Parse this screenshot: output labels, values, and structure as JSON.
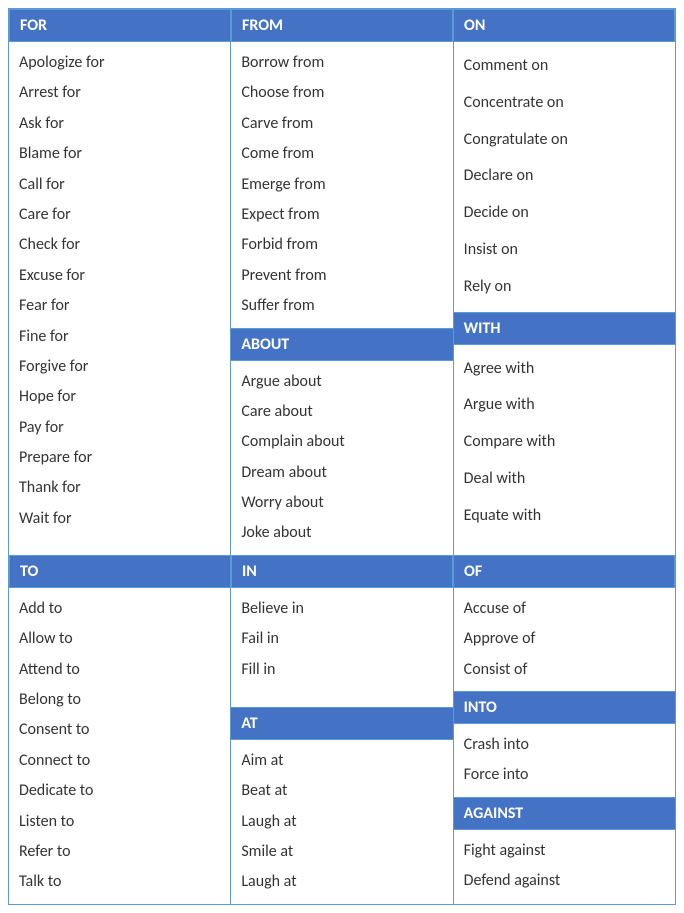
{
  "colors": {
    "header_bg": "#4472c4",
    "header_text": "#ffffff",
    "border": "#5b9bd5",
    "body_text": "#333333",
    "bg": "#ffffff"
  },
  "typography": {
    "font_family": "Calibri, Arial, sans-serif",
    "header_fontsize": 16,
    "body_fontsize": 16,
    "line_height_normal": 1.9,
    "line_height_spaced": 2.3
  },
  "sections": {
    "for": {
      "title": "FOR",
      "items": [
        "Apologize for",
        "Arrest for",
        "Ask for",
        "Blame for",
        "Call for",
        "Care for",
        "Check for",
        "Excuse for",
        "Fear for",
        "Fine for",
        "Forgive for",
        "Hope for",
        "Pay for",
        "Prepare for",
        "Thank for",
        "Wait for"
      ]
    },
    "from": {
      "title": "FROM",
      "items": [
        "Borrow from",
        "Choose from",
        "Carve from",
        "Come from",
        "Emerge from",
        "Expect from",
        "Forbid from",
        "Prevent from",
        "Suffer from"
      ]
    },
    "on": {
      "title": "ON",
      "items": [
        "Comment on",
        "Concentrate on",
        "Congratulate on",
        "Declare on",
        "Decide on",
        "Insist on",
        "Rely on"
      ]
    },
    "about": {
      "title": "ABOUT",
      "items": [
        "Argue about",
        "Care about",
        "Complain about",
        "Dream about",
        "Worry about",
        "Joke about"
      ]
    },
    "with": {
      "title": "WITH",
      "items": [
        "Agree with",
        "Argue with",
        "Compare with",
        "Deal with",
        "Equate with"
      ]
    },
    "to": {
      "title": "TO",
      "items": [
        "Add to",
        "Allow to",
        "Attend to",
        "Belong to",
        "Consent to",
        "Connect to",
        "Dedicate to",
        "Listen to",
        "Refer to",
        "Talk to"
      ]
    },
    "in": {
      "title": "IN",
      "items": [
        "Believe in",
        "Fail in",
        "Fill in"
      ]
    },
    "of": {
      "title": "OF",
      "items": [
        "Accuse of",
        "Approve of",
        "Consist of"
      ]
    },
    "at": {
      "title": "AT",
      "items": [
        "Aim at",
        "Beat at",
        "Laugh at",
        "Smile at",
        "Laugh at"
      ]
    },
    "into": {
      "title": "INTO",
      "items": [
        "Crash into",
        "Force into"
      ]
    },
    "against": {
      "title": "AGAINST",
      "items": [
        "Fight against",
        "Defend against"
      ]
    }
  }
}
